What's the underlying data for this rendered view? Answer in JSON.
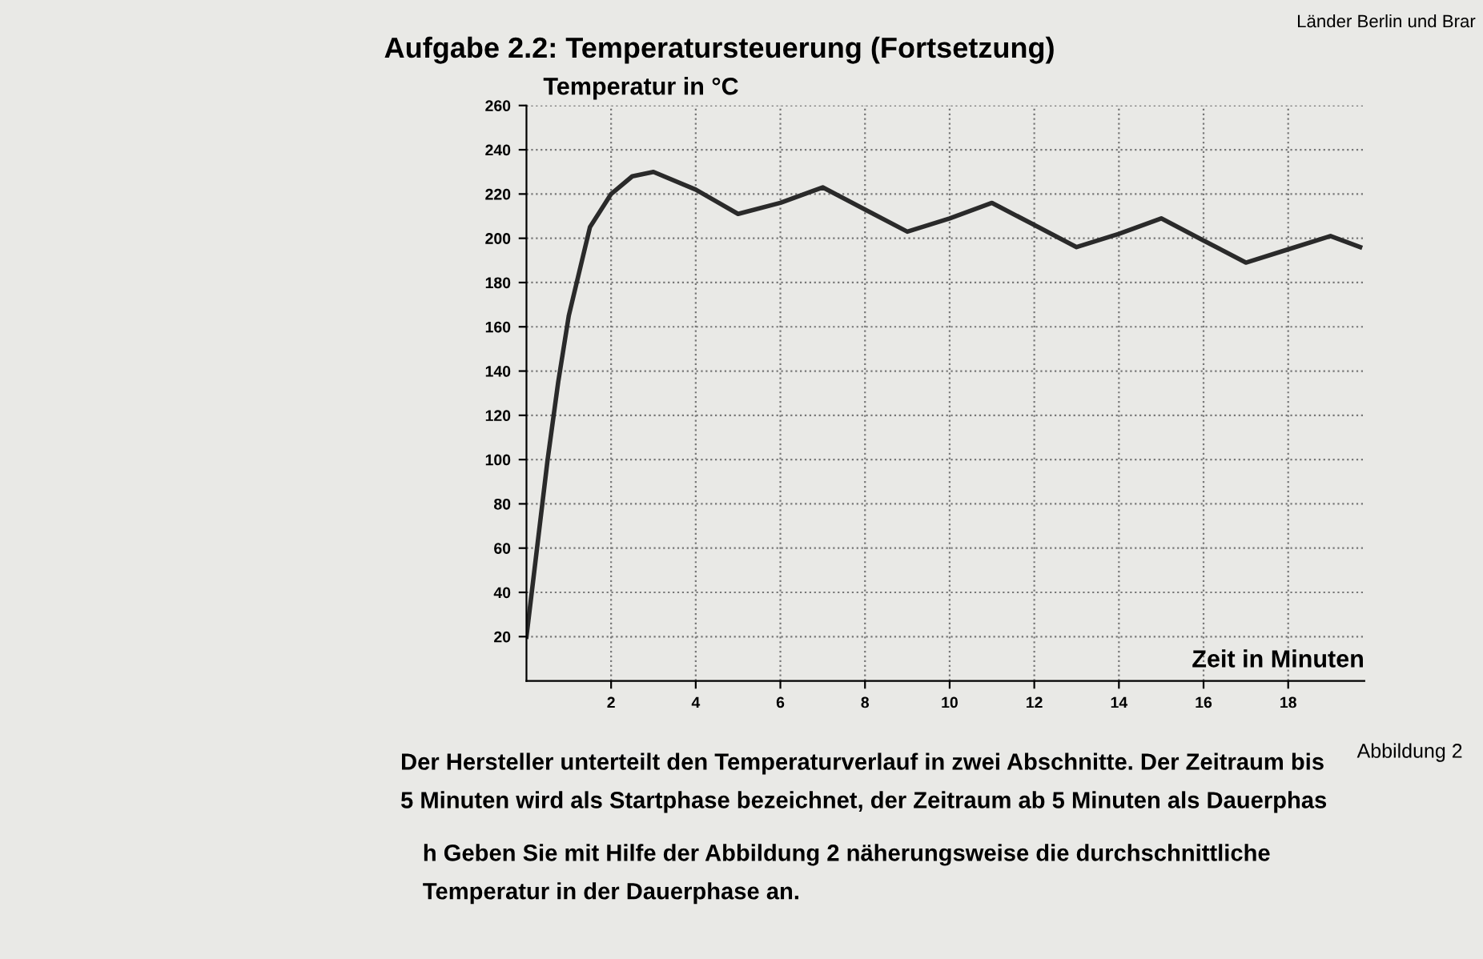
{
  "chart_data": {
    "type": "line",
    "title": "Aufgabe 2.2: Temperatursteuerung (Fortsetzung)",
    "ylabel": "Temperatur in °C",
    "xlabel": "Zeit in Minuten",
    "annotations": [
      "Länder Berlin und Brar",
      "Abbildung 2",
      "Der Hersteller unterteilt den Temperaturverlauf in zwei Abschnitte. Der Zeitraum bis",
      "5 Minuten wird als Startphase bezeichnet, der Zeitraum ab 5 Minuten als Dauerphas",
      "h Geben Sie mit Hilfe der Abbildung 2 näherungsweise die durchschnittliche",
      "Temperatur in der Dauerphase an."
    ],
    "x": [
      0,
      0.25,
      0.5,
      0.75,
      1,
      1.5,
      2,
      2.5,
      3,
      4,
      5,
      6,
      7,
      8,
      9,
      10,
      11,
      12,
      13,
      14,
      15,
      16,
      17,
      18,
      19,
      19.7
    ],
    "series": [
      {
        "color": "#2a2a2a",
        "values": [
          20,
          60,
          100,
          135,
          165,
          205,
          220,
          228,
          230,
          222,
          211,
          216,
          223,
          213,
          203,
          209,
          216,
          206,
          196,
          202,
          209,
          199,
          189,
          195,
          201,
          196
        ]
      }
    ],
    "xlim": [
      0,
      19.8
    ],
    "ylim": [
      0,
      260
    ],
    "xticks": [
      2,
      4,
      6,
      8,
      10,
      12,
      14,
      16,
      18
    ],
    "yticks": [
      20,
      40,
      60,
      80,
      100,
      120,
      140,
      160,
      180,
      200,
      220,
      240,
      260
    ],
    "grid": true,
    "marker": "none",
    "line_style": "solid",
    "legend": false
  }
}
